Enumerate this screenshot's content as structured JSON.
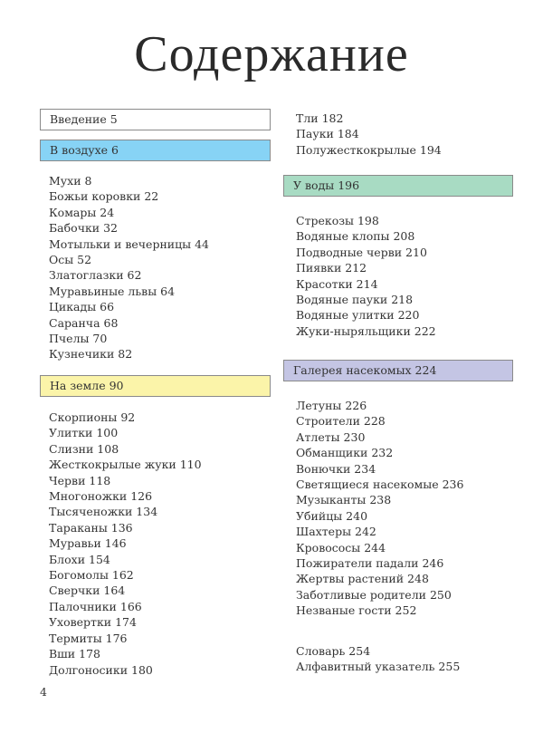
{
  "title": "Содержание",
  "page_number": "4",
  "sections": {
    "intro": {
      "label": "Введение 5",
      "color": "#ffffff"
    },
    "air": {
      "label": "В воздухе 6",
      "color": "#87d3f5",
      "items": [
        "Мухи 8",
        "Божьи коровки 22",
        "Комары 24",
        "Бабочки 32",
        "Мотыльки и вечерницы 44",
        "Осы 52",
        "Златоглазки 62",
        "Муравьиные львы 64",
        "Цикады 66",
        "Саранча 68",
        "Пчелы 70",
        "Кузнечики 82"
      ]
    },
    "ground": {
      "label": "На земле 90",
      "color": "#fbf4a9",
      "items": [
        "Скорпионы 92",
        "Улитки 100",
        "Слизни 108",
        "Жесткокрылые жуки 110",
        "Черви 118",
        "Многоножки 126",
        "Тысяченожки 134",
        "Тараканы 136",
        "Муравьи 146",
        "Блохи 154",
        "Богомолы 162",
        "Сверчки 164",
        "Палочники 166",
        "Уховертки 174",
        "Термиты 176",
        "Вши 178",
        "Долгоносики 180"
      ],
      "items_continued": [
        "Тли 182",
        "Пауки 184",
        "Полужесткокрылые 194"
      ]
    },
    "water": {
      "label": "У воды 196",
      "color": "#a8dbc3",
      "items": [
        "Стрекозы 198",
        "Водяные клопы 208",
        "Подводные черви 210",
        "Пиявки 212",
        "Красотки 214",
        "Водяные пауки 218",
        "Водяные улитки 220",
        "Жуки-ныряльщики 222"
      ]
    },
    "gallery": {
      "label": "Галерея насекомых 224",
      "color": "#c4c5e4",
      "items": [
        "Летуны 226",
        "Строители 228",
        "Атлеты 230",
        "Обманщики 232",
        "Вонючки 234",
        "Светящиеся насекомые 236",
        "Музыканты 238",
        "Убийцы 240",
        "Шахтеры 242",
        "Кровососы 244",
        "Пожиратели падали 246",
        "Жертвы растений 248",
        "Заботливые родители 250",
        "Незваные гости 252"
      ]
    },
    "back_matter": [
      "Словарь 254",
      "Алфавитный указатель 255"
    ]
  }
}
